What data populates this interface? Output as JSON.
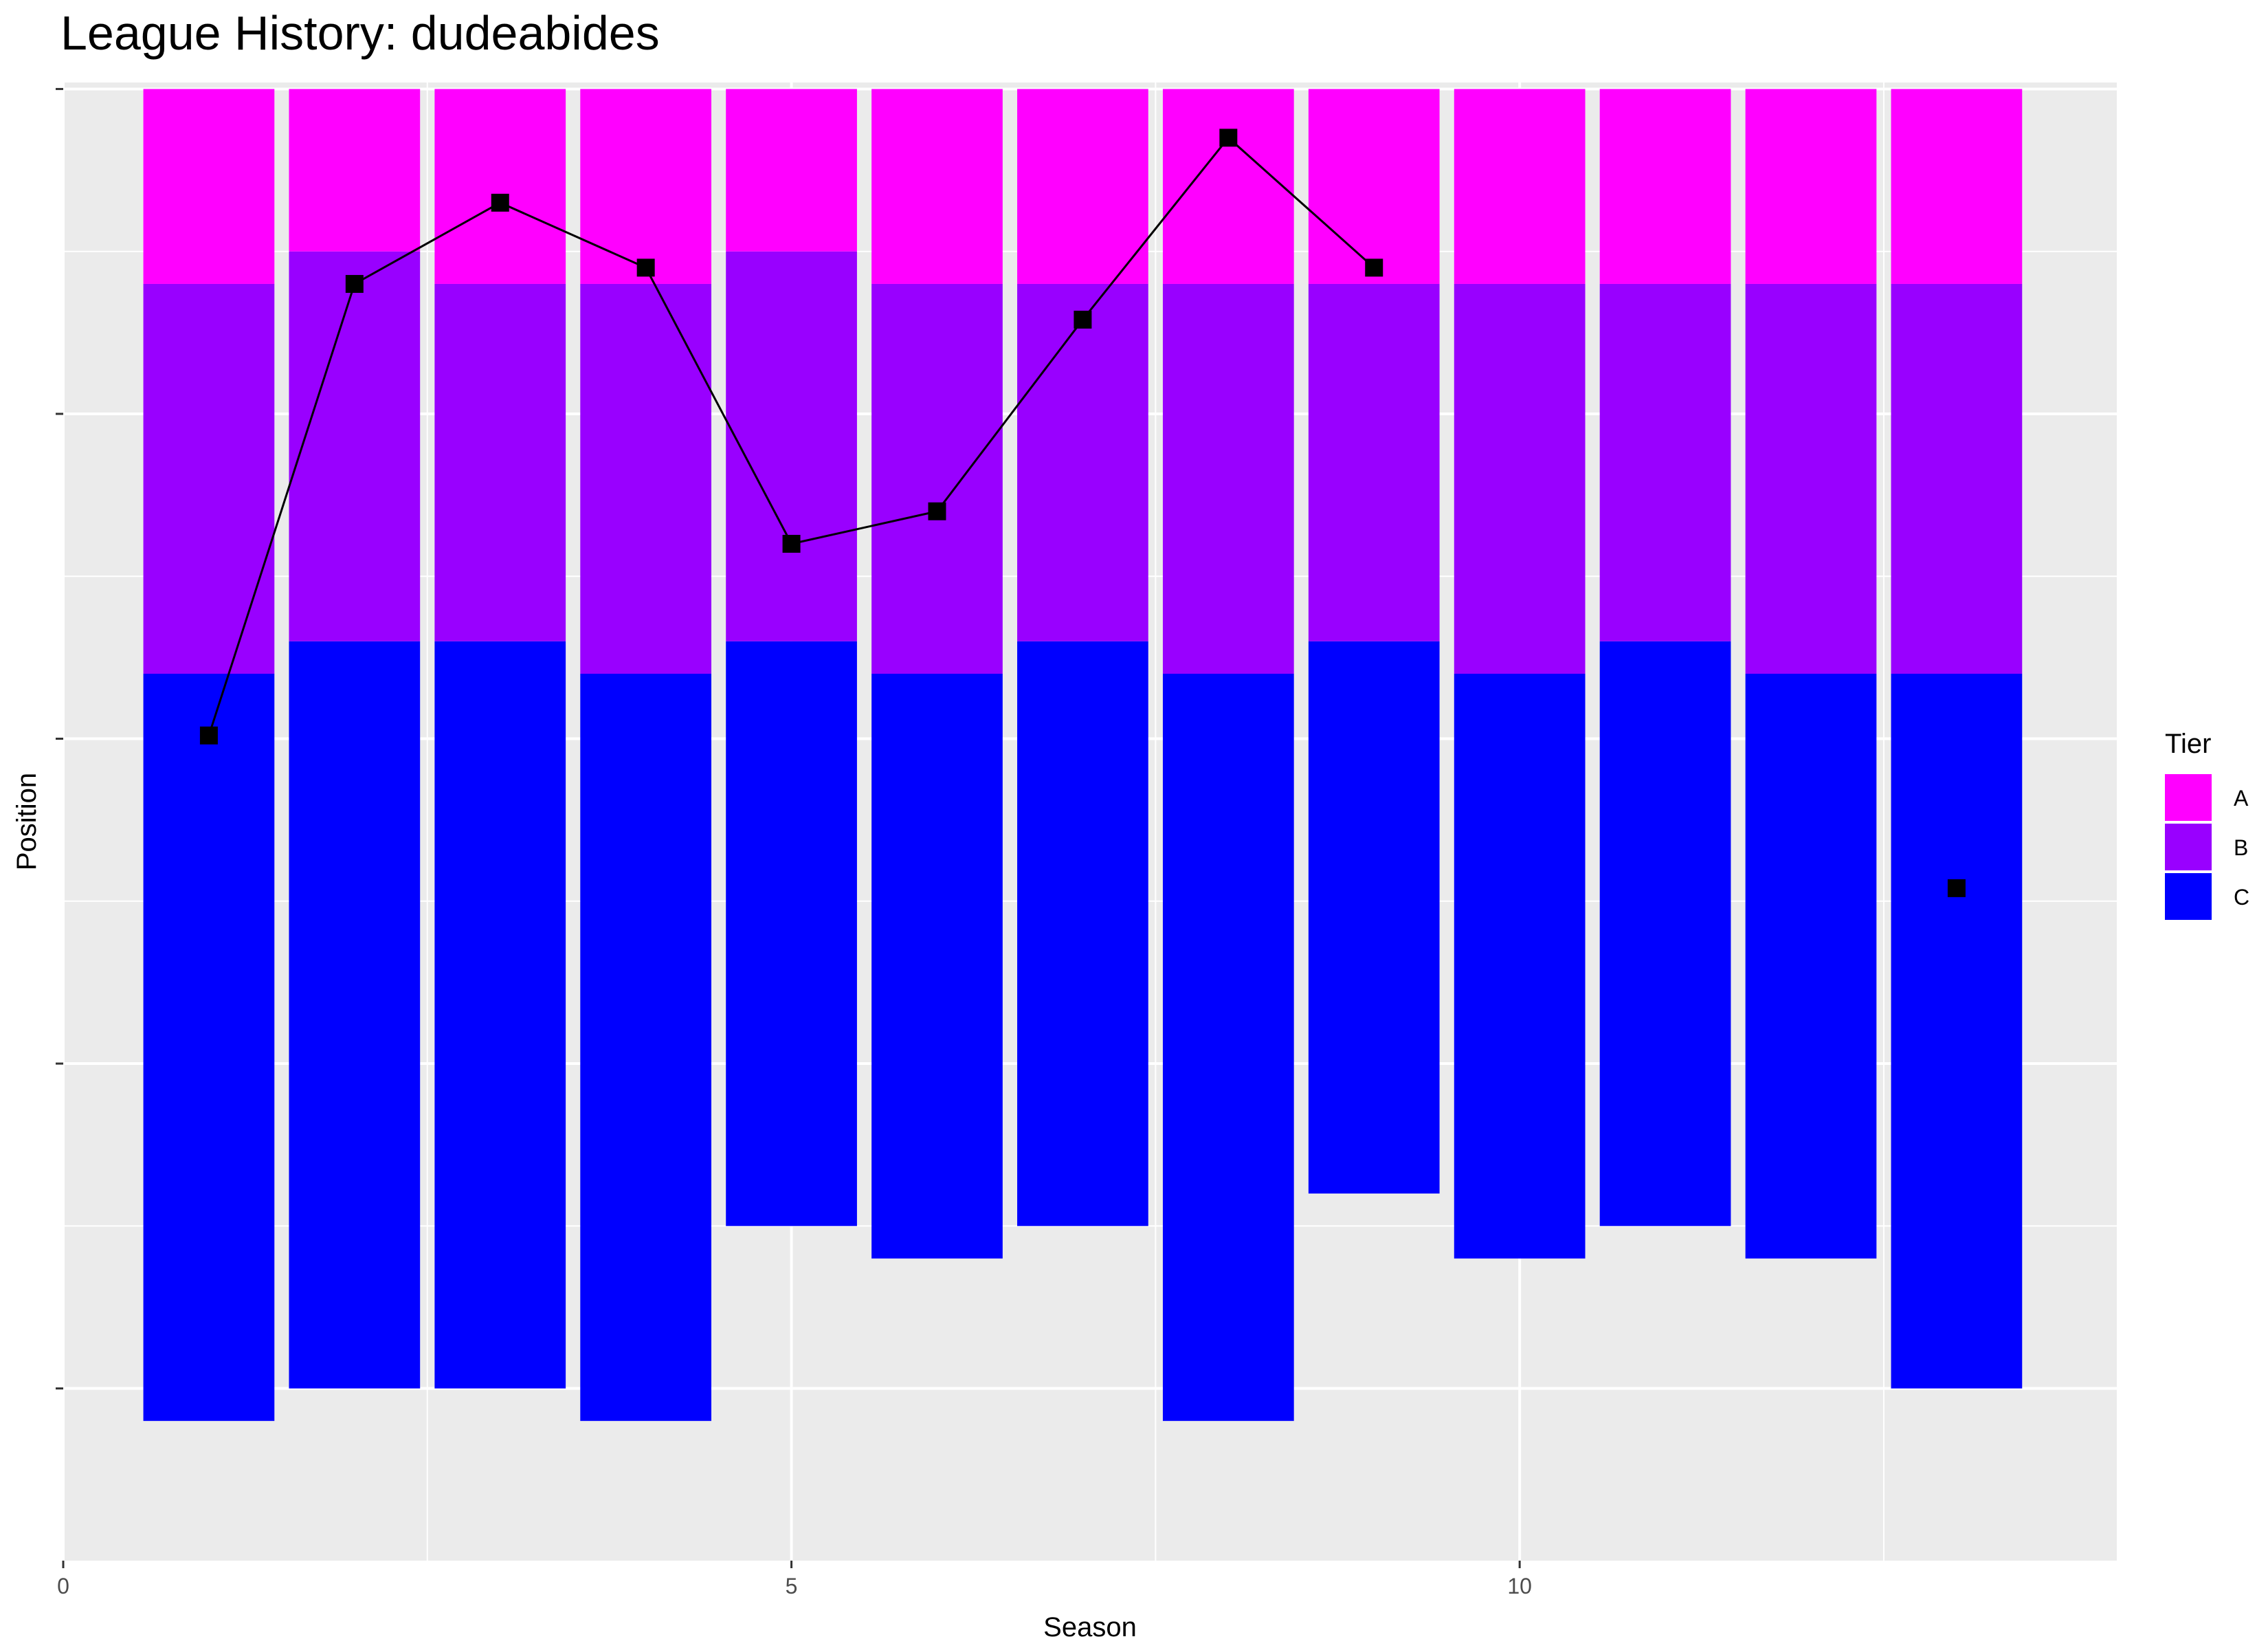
{
  "chart_data": {
    "type": "bar",
    "title": "League History: dudeabides",
    "xlabel": "Season",
    "ylabel": "Position",
    "xlim": [
      0,
      14.1
    ],
    "ylim": [
      0.47,
      5.02
    ],
    "x_ticks": [
      0,
      5,
      10
    ],
    "y_ticks": [
      1,
      2,
      3,
      4,
      5
    ],
    "y_tick_labels_visible": false,
    "grid": true,
    "legend": {
      "title": "Tier",
      "position": "right",
      "entries": [
        {
          "name": "A",
          "color": "#FF00FF"
        },
        {
          "name": "B",
          "color": "#9900FF"
        },
        {
          "name": "C",
          "color": "#0000FF"
        }
      ]
    },
    "bars": [
      {
        "season": 1,
        "a": [
          4.4,
          5.0
        ],
        "b": [
          3.2,
          4.4
        ],
        "c": [
          0.9,
          3.2
        ]
      },
      {
        "season": 2,
        "a": [
          4.5,
          5.0
        ],
        "b": [
          3.3,
          4.5
        ],
        "c": [
          1.0,
          3.3
        ]
      },
      {
        "season": 3,
        "a": [
          4.4,
          5.0
        ],
        "b": [
          3.3,
          4.4
        ],
        "c": [
          1.0,
          3.3
        ]
      },
      {
        "season": 4,
        "a": [
          4.4,
          5.0
        ],
        "b": [
          3.2,
          4.4
        ],
        "c": [
          0.9,
          3.2
        ]
      },
      {
        "season": 5,
        "a": [
          4.5,
          5.0
        ],
        "b": [
          3.3,
          4.5
        ],
        "c": [
          1.5,
          3.3
        ]
      },
      {
        "season": 6,
        "a": [
          4.4,
          5.0
        ],
        "b": [
          3.2,
          4.4
        ],
        "c": [
          1.4,
          3.2
        ]
      },
      {
        "season": 7,
        "a": [
          4.4,
          5.0
        ],
        "b": [
          3.3,
          4.4
        ],
        "c": [
          1.5,
          3.3
        ]
      },
      {
        "season": 8,
        "a": [
          4.4,
          5.0
        ],
        "b": [
          3.2,
          4.4
        ],
        "c": [
          0.9,
          3.2
        ]
      },
      {
        "season": 9,
        "a": [
          4.4,
          5.0
        ],
        "b": [
          3.3,
          4.4
        ],
        "c": [
          1.6,
          3.3
        ]
      },
      {
        "season": 10,
        "a": [
          4.4,
          5.0
        ],
        "b": [
          3.2,
          4.4
        ],
        "c": [
          1.4,
          3.2
        ]
      },
      {
        "season": 11,
        "a": [
          4.4,
          5.0
        ],
        "b": [
          3.3,
          4.4
        ],
        "c": [
          1.5,
          3.3
        ]
      },
      {
        "season": 12,
        "a": [
          4.4,
          5.0
        ],
        "b": [
          3.2,
          4.4
        ],
        "c": [
          1.4,
          3.2
        ]
      },
      {
        "season": 13,
        "a": [
          4.4,
          5.0
        ],
        "b": [
          3.2,
          4.4
        ],
        "c": [
          1.0,
          3.2
        ]
      }
    ],
    "position_line": {
      "color": "#000000",
      "points": [
        {
          "season": 1,
          "position": 3.01
        },
        {
          "season": 2,
          "position": 4.4
        },
        {
          "season": 3,
          "position": 4.65
        },
        {
          "season": 4,
          "position": 4.45
        },
        {
          "season": 5,
          "position": 3.6
        },
        {
          "season": 6,
          "position": 3.7
        },
        {
          "season": 7,
          "position": 4.29
        },
        {
          "season": 8,
          "position": 4.85
        },
        {
          "season": 9,
          "position": 4.45
        },
        {
          "season": 13,
          "position": 2.54,
          "connected": false
        }
      ]
    }
  }
}
